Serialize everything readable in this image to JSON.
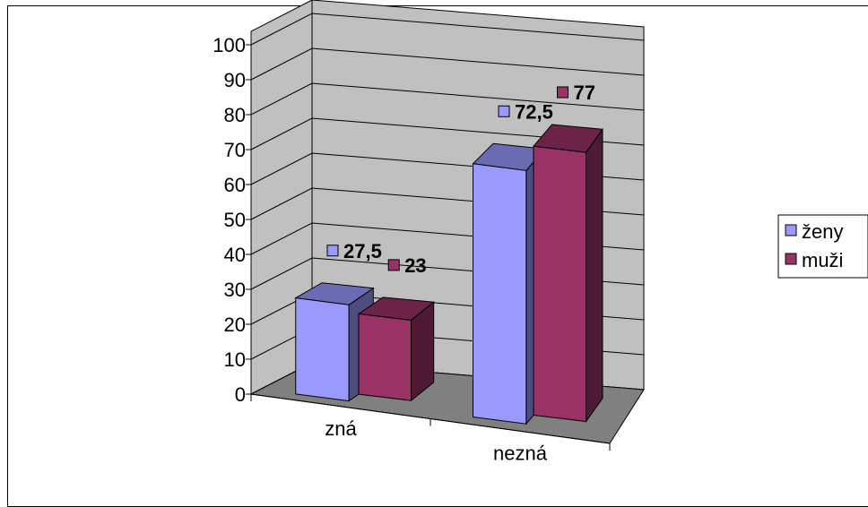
{
  "chart_data": {
    "type": "bar",
    "variant": "3d-clustered-column",
    "categories": [
      "zná",
      "nezná"
    ],
    "series": [
      {
        "name": "ženy",
        "values": [
          27.5,
          72.5
        ],
        "value_labels": [
          "27,5",
          "72,5"
        ],
        "color": "#9999ff"
      },
      {
        "name": "muži",
        "values": [
          23,
          77
        ],
        "value_labels": [
          "23",
          "77"
        ],
        "color": "#993366"
      }
    ],
    "ylim": [
      0,
      100
    ],
    "y_ticks": [
      "0",
      "10",
      "20",
      "30",
      "40",
      "50",
      "60",
      "70",
      "80",
      "90",
      "100"
    ],
    "grid": true,
    "legend_position": "right",
    "wall_color": "#c0c0c0",
    "floor_color": "#808080"
  }
}
